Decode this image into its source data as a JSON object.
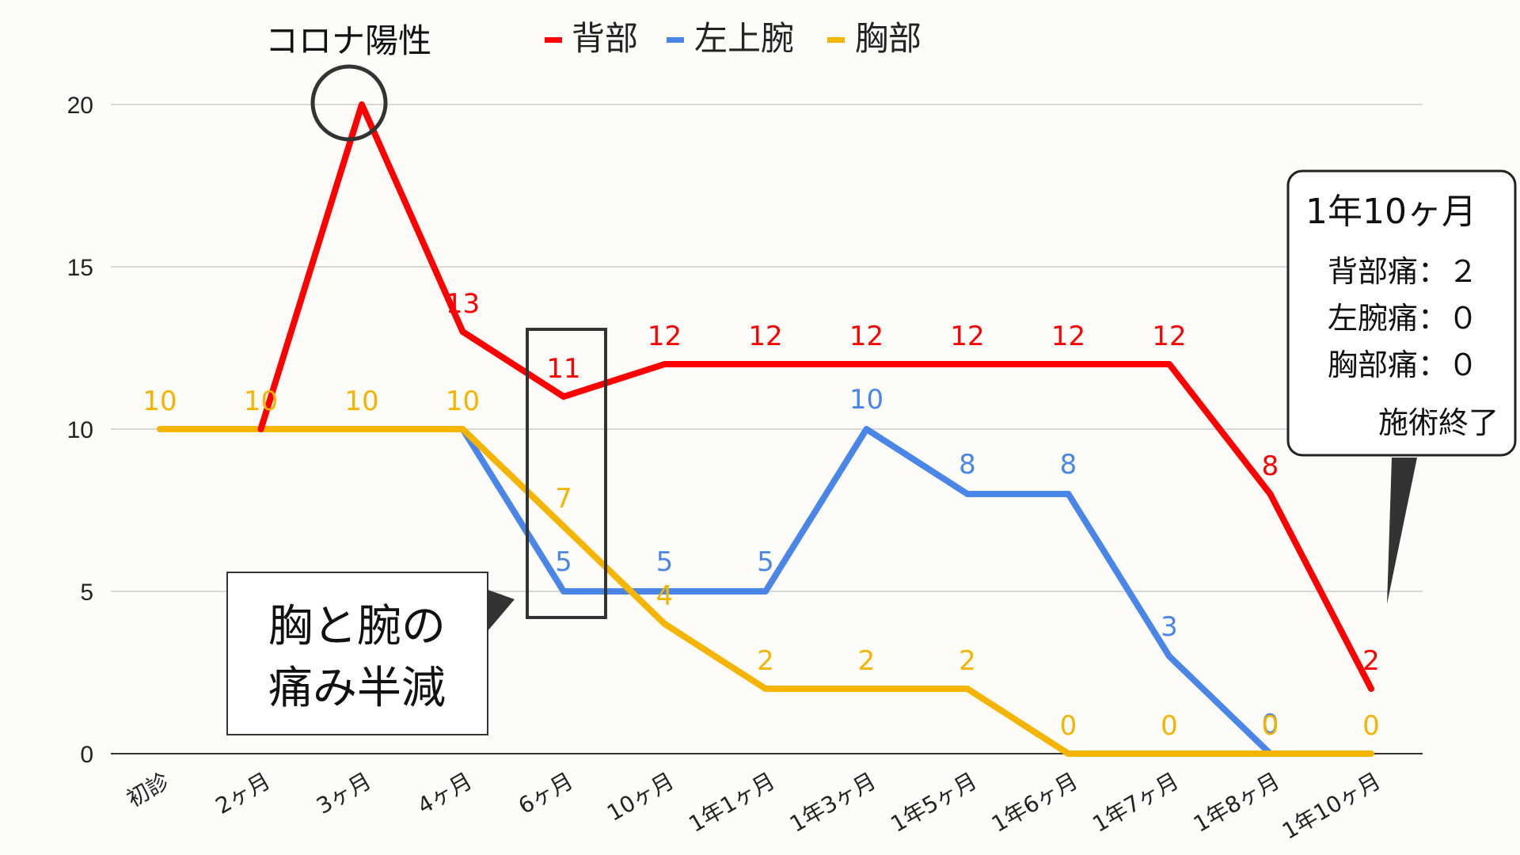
{
  "chart_data": {
    "type": "line",
    "categories": [
      "初診",
      "2ヶ月",
      "3ヶ月",
      "4ヶ月",
      "6ヶ月",
      "10ヶ月",
      "1年1ヶ月",
      "1年3ヶ月",
      "1年5ヶ月",
      "1年6ヶ月",
      "1年7ヶ月",
      "1年8ヶ月",
      "1年10ヶ月"
    ],
    "series": [
      {
        "name": "背部",
        "color": "#ff0000",
        "values": [
          null,
          10,
          20,
          13,
          11,
          12,
          12,
          12,
          12,
          12,
          12,
          8,
          2
        ],
        "labels": [
          null,
          null,
          null,
          "13",
          "11",
          "12",
          "12",
          "12",
          "12",
          "12",
          "12",
          "8",
          "2"
        ]
      },
      {
        "name": "左上腕",
        "color": "#4a86e8",
        "values": [
          null,
          null,
          null,
          10,
          5,
          5,
          5,
          10,
          8,
          8,
          3,
          0,
          null
        ],
        "labels": [
          null,
          null,
          null,
          null,
          "5",
          "5",
          "5",
          "10",
          "8",
          "8",
          "3",
          "0",
          null
        ]
      },
      {
        "name": "胸部",
        "color": "#f4b400",
        "values": [
          10,
          10,
          10,
          10,
          7,
          4,
          2,
          2,
          2,
          0,
          0,
          0,
          0
        ],
        "labels": [
          "10",
          "10",
          "10",
          "10",
          "7",
          "4",
          "2",
          "2",
          "2",
          "0",
          "0",
          "0",
          "0"
        ]
      }
    ],
    "yticks": [
      0,
      5,
      10,
      15,
      20
    ],
    "ylim": [
      0,
      20
    ],
    "grid": true,
    "legend_position": "top"
  },
  "annotations": {
    "covid": "コロナ陽性",
    "halved_line1": "胸と腕の",
    "halved_line2": "痛み半減",
    "callout_title": "1年10ヶ月",
    "callout_back": "背部痛：２",
    "callout_arm": "左腕痛：０",
    "callout_chest": "胸部痛：０",
    "callout_end": "施術終了",
    "callout_end_color": "#ff0000"
  }
}
